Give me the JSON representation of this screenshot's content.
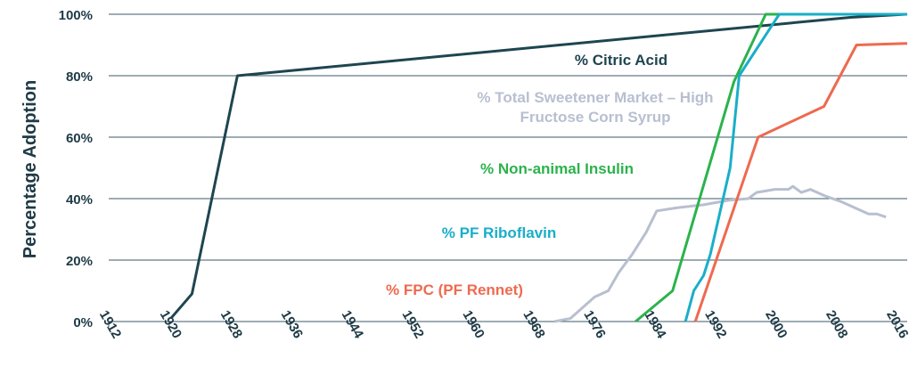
{
  "chart_data": {
    "type": "line",
    "y_label": "Percentage Adoption",
    "xlim": [
      1912,
      2017.5
    ],
    "xticks": [
      1912,
      1920,
      1928,
      1936,
      1944,
      1952,
      1960,
      1968,
      1976,
      1984,
      1992,
      2000,
      2008,
      2016
    ],
    "ylim": [
      0,
      100
    ],
    "yticks": [
      {
        "value": 0,
        "label": "0%"
      },
      {
        "value": 20,
        "label": "20%"
      },
      {
        "value": 40,
        "label": "40%"
      },
      {
        "value": 60,
        "label": "60%"
      },
      {
        "value": 80,
        "label": "80%"
      },
      {
        "value": 100,
        "label": "100%"
      }
    ],
    "grid": true,
    "series": [
      {
        "name": "% Citric Acid",
        "color": "#1e4550",
        "x": [
          1920.2,
          1923,
          1929,
          2010,
          2017.5
        ],
        "values": [
          1,
          9,
          80,
          99,
          100
        ]
      },
      {
        "name": "% Total Sweetener Market – High Fructose Corn Syrup",
        "color": "#b8bfd0",
        "x": [
          1970.9,
          1973,
          1976.2,
          1978,
          1979.4,
          1981.2,
          1983,
          1984.4,
          1987,
          1990.6,
          1994,
          1996.5,
          1997.6,
          2000,
          2001.8,
          2002.4,
          2003.5,
          2004.7,
          2006.5,
          2008.8,
          2010.6,
          2012.4,
          2013.5,
          2014.7
        ],
        "values": [
          0,
          1,
          8,
          10,
          16,
          22,
          29,
          36,
          37,
          38,
          39.5,
          40,
          42,
          43,
          43,
          44,
          42,
          43,
          41,
          39,
          37,
          35,
          35,
          34
        ]
      },
      {
        "name": "% Non-animal Insulin",
        "color": "#2bb34b",
        "x": [
          1981.6,
          1986.5,
          1994.6,
          1998.8,
          2017.5
        ],
        "values": [
          0,
          10,
          78,
          100,
          100
        ]
      },
      {
        "name": "% PF Riboflavin",
        "color": "#1aaec8",
        "x": [
          1988.2,
          1989.3,
          1990.6,
          1991.5,
          1994.1,
          1995.3,
          1999.8,
          2000.6,
          2017.5
        ],
        "values": [
          0,
          10,
          15,
          22,
          50,
          80,
          97,
          100,
          100
        ]
      },
      {
        "name": "% FPC (PF Rennet)",
        "color": "#ee6a4f",
        "x": [
          1989.5,
          1997.8,
          2006.5,
          2010.8,
          2017.5
        ],
        "values": [
          0,
          60,
          70,
          90,
          90.5
        ]
      }
    ]
  }
}
